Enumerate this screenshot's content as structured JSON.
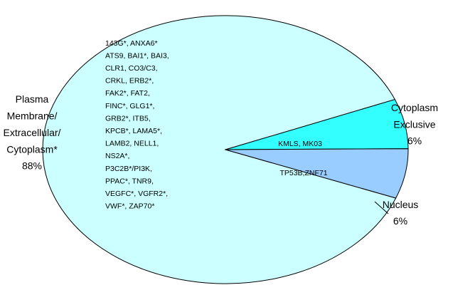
{
  "chart_data": {
    "type": "pie",
    "categories": [
      "Plasma Membrane/ Extracellular/ Cytoplasm*",
      "Cytoplasm Exclusive",
      "Nucleus"
    ],
    "values": [
      88,
      6,
      6
    ],
    "value_labels": [
      "88%",
      "6%",
      "6%"
    ],
    "colors": [
      "#ccffff",
      "#33ffff",
      "#99ccff"
    ],
    "slice_annotations": [
      [
        "143G*, ANXA6*",
        "ATS9, BAI1*, BAI3,",
        "CLR1, CO3/C3,",
        "CRKL, ERB2*,",
        "FAK2*, FAT2,",
        "FINC*, GLG1*,",
        "GRB2*, ITB5,",
        "KPCB*, LAMA5*,",
        "LAMB2, NELL1,",
        "NS2A*,",
        "P3C2B*/PI3K,",
        "PPAC*, TNR9,",
        "VEGFC*, VGFR2*,",
        "VWF*, ZAP70*"
      ],
      [
        "KMLS,  MK03"
      ],
      [
        "TP53B,ZNF71"
      ]
    ]
  }
}
